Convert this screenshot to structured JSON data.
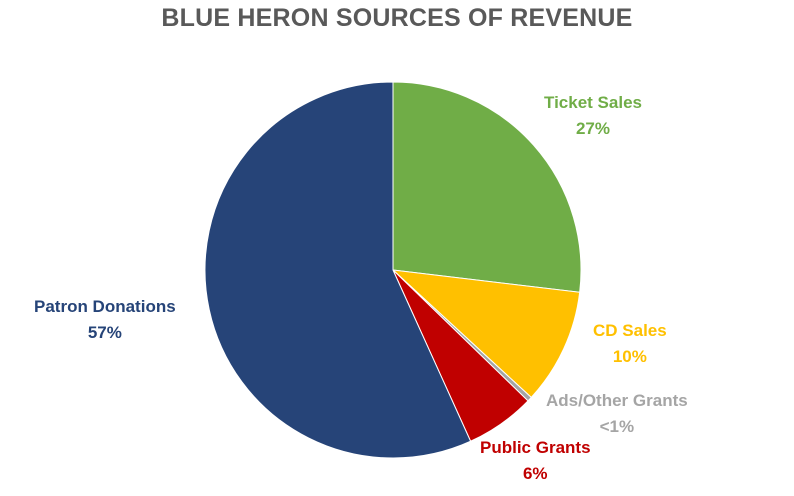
{
  "chart_data": {
    "type": "pie",
    "title": "BLUE HERON SOURCES OF REVENUE",
    "slices": [
      {
        "name": "Ticket Sales",
        "value": 27,
        "value_label": "27%",
        "color": "#70AD47"
      },
      {
        "name": "CD Sales",
        "value": 10,
        "value_label": "10%",
        "color": "#FFC000"
      },
      {
        "name": "Ads/Other Grants",
        "value": 0.4,
        "value_label": "<1%",
        "color": "#A5A5A5"
      },
      {
        "name": "Public Grants",
        "value": 6,
        "value_label": "6%",
        "color": "#C00000"
      },
      {
        "name": "Patron Donations",
        "value": 57,
        "value_label": "57%",
        "color": "#264478"
      }
    ]
  }
}
